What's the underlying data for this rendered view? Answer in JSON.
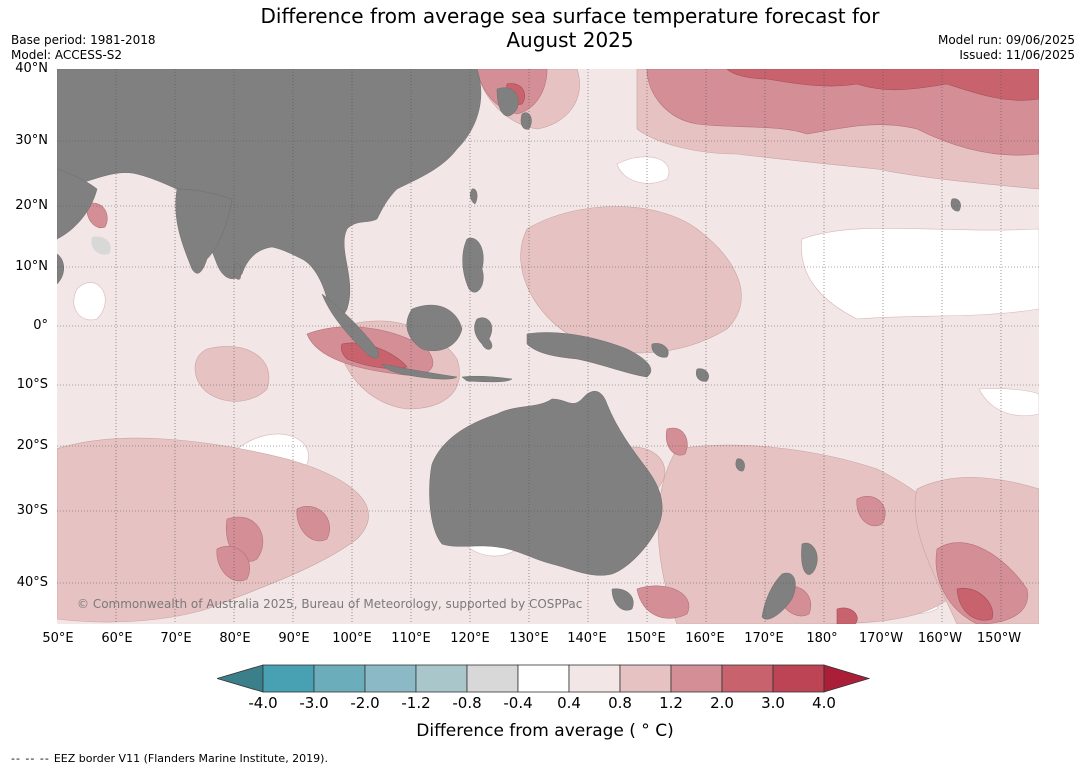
{
  "title": {
    "line1": "Difference from average sea surface temperature forecast for",
    "line2": "August 2025"
  },
  "meta_left": {
    "base_period": "Base period: 1981-2018",
    "model": "Model: ACCESS-S2"
  },
  "meta_right": {
    "model_run": "Model run: 09/06/2025",
    "issued": "Issued: 11/06/2025"
  },
  "map": {
    "lat_labels": [
      "40°N",
      "30°N",
      "20°N",
      "10°N",
      "0°",
      "10°S",
      "20°S",
      "30°S",
      "40°S"
    ],
    "lon_labels": [
      "50°E",
      "60°E",
      "70°E",
      "80°E",
      "90°E",
      "100°E",
      "110°E",
      "120°E",
      "130°E",
      "140°E",
      "150°E",
      "160°E",
      "170°E",
      "180°",
      "170°W",
      "160°W",
      "150°W"
    ],
    "copyright": "© Commonwealth of Australia 2025, Bureau of Meteorology, supported by COSPPac",
    "colors": {
      "land": "#808080",
      "cat_0_4_0_8": "#f3e6e6",
      "cat_0_8_1_2": "#e6c3c2",
      "cat_1_2_2_0": "#d48e95",
      "cat_2_0_3_0": "#c8636e",
      "cat_neutral": "#ffffff",
      "cat_low_neg": "#d8d8d8"
    }
  },
  "colorbar": {
    "label": "Difference from average ( ° C)",
    "ticks": [
      "-4.0",
      "-3.0",
      "-2.0",
      "-1.2",
      "-0.8",
      "-0.4",
      "0.4",
      "0.8",
      "1.2",
      "2.0",
      "3.0",
      "4.0"
    ],
    "colors": [
      "#3b7f8a",
      "#47a1b3",
      "#6cadbc",
      "#8bb9c5",
      "#a9c7cb",
      "#d8d8d8",
      "#ffffff",
      "#f3e6e6",
      "#e6c3c2",
      "#d48e95",
      "#c8636e",
      "#bd4454",
      "#ab1e37"
    ]
  },
  "footer": {
    "dash": "-- -- --",
    "eez": "EEZ border V11 (Flanders Marine Institute, 2019)."
  }
}
